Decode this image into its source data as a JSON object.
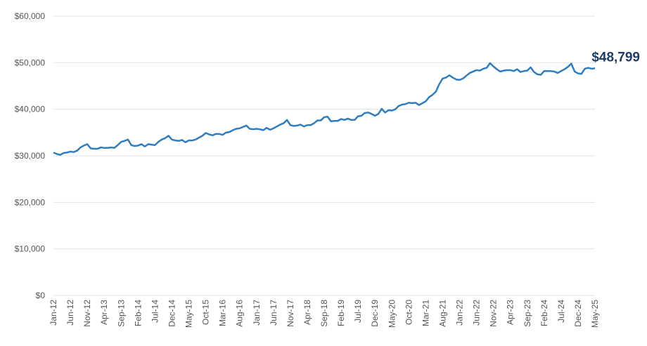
{
  "chart_data": {
    "type": "line",
    "categories": [
      "Jan-12",
      null,
      null,
      null,
      null,
      "Jun-12",
      null,
      null,
      null,
      null,
      "Nov-12",
      null,
      null,
      null,
      null,
      "Apr-13",
      null,
      null,
      null,
      null,
      "Sep-13",
      null,
      null,
      null,
      null,
      "Feb-14",
      null,
      null,
      null,
      null,
      "Jul-14",
      null,
      null,
      null,
      null,
      "Dec-14",
      null,
      null,
      null,
      null,
      "May-15",
      null,
      null,
      null,
      null,
      "Oct-15",
      null,
      null,
      null,
      null,
      "Mar-16",
      null,
      null,
      null,
      null,
      "Aug-16",
      null,
      null,
      null,
      null,
      "Jan-17",
      null,
      null,
      null,
      null,
      "Jun-17",
      null,
      null,
      null,
      null,
      "Nov-17",
      null,
      null,
      null,
      null,
      "Apr-18",
      null,
      null,
      null,
      null,
      "Sep-18",
      null,
      null,
      null,
      null,
      "Feb-19",
      null,
      null,
      null,
      null,
      "Jul-19",
      null,
      null,
      null,
      null,
      "Dec-19",
      null,
      null,
      null,
      null,
      "May-20",
      null,
      null,
      null,
      null,
      "Oct-20",
      null,
      null,
      null,
      null,
      "Mar-21",
      null,
      null,
      null,
      null,
      "Aug-21",
      null,
      null,
      null,
      null,
      "Jan-22",
      null,
      null,
      null,
      null,
      "Jun-22",
      null,
      null,
      null,
      null,
      "Nov-22",
      null,
      null,
      null,
      null,
      "Apr-23",
      null,
      null,
      null,
      null,
      "Sep-23",
      null,
      null,
      null,
      null,
      "Feb-24",
      null,
      null,
      null,
      null,
      "Jul-24",
      null,
      null,
      null,
      null,
      "Dec-24",
      null,
      null,
      null,
      null,
      "May-25"
    ],
    "values": [
      30700,
      30400,
      30200,
      30600,
      30700,
      30900,
      30800,
      31100,
      31800,
      32200,
      32500,
      31600,
      31500,
      31500,
      31800,
      31700,
      31700,
      31800,
      31700,
      32300,
      33000,
      33200,
      33500,
      32300,
      32100,
      32200,
      32500,
      32000,
      32500,
      32400,
      32300,
      33000,
      33500,
      33800,
      34300,
      33500,
      33300,
      33200,
      33400,
      32900,
      33300,
      33300,
      33500,
      33900,
      34300,
      34900,
      34600,
      34400,
      34700,
      34700,
      34500,
      35000,
      35100,
      35500,
      35800,
      35900,
      36200,
      36500,
      35800,
      35700,
      35800,
      35700,
      35500,
      36000,
      35600,
      35900,
      36300,
      36700,
      37000,
      37700,
      36600,
      36400,
      36500,
      36700,
      36300,
      36600,
      36600,
      37000,
      37600,
      37600,
      38300,
      38400,
      37400,
      37500,
      37500,
      37900,
      37700,
      38000,
      37700,
      37700,
      38500,
      38600,
      39200,
      39300,
      39000,
      38600,
      39000,
      40100,
      39300,
      39800,
      39700,
      40000,
      40700,
      41000,
      41100,
      41400,
      41300,
      41400,
      40900,
      41300,
      41700,
      42600,
      43100,
      43800,
      45400,
      46600,
      46800,
      47300,
      46800,
      46400,
      46300,
      46600,
      47200,
      47800,
      48100,
      48400,
      48300,
      48700,
      48900,
      49900,
      49200,
      48600,
      48100,
      48300,
      48400,
      48400,
      48200,
      48600,
      48000,
      48200,
      48300,
      49000,
      48000,
      47500,
      47400,
      48200,
      48200,
      48200,
      48100,
      47800,
      48200,
      48600,
      49100,
      49800,
      48100,
      47700,
      47600,
      48700,
      48900,
      48700,
      48799
    ],
    "value_labels": [
      null,
      null,
      null,
      null,
      null,
      null,
      null,
      null,
      null,
      null,
      null,
      null,
      null,
      null,
      null,
      null,
      null,
      null,
      null,
      null,
      null,
      null,
      null,
      null,
      null,
      null,
      null,
      null,
      null,
      null,
      null,
      null,
      null,
      null,
      null,
      null,
      null,
      null,
      null,
      null,
      null,
      null,
      null,
      null,
      null,
      null,
      null,
      null,
      null,
      null,
      null,
      null,
      null,
      null,
      null,
      null,
      null,
      null,
      null,
      null,
      null,
      null,
      null,
      null,
      null,
      null,
      null,
      null,
      null,
      null,
      null,
      null,
      null,
      null,
      null,
      null,
      null,
      null,
      null,
      null,
      null,
      null,
      null,
      null,
      null,
      null,
      null,
      null,
      null,
      null,
      null,
      null,
      null,
      null,
      null,
      null,
      null,
      null,
      null,
      null,
      null,
      null,
      null,
      null,
      null,
      null,
      null,
      null,
      null,
      null,
      null,
      null,
      null,
      null,
      null,
      null,
      null,
      null,
      null,
      null,
      null,
      null,
      null,
      null,
      null,
      null,
      null,
      null,
      null,
      null,
      null,
      null,
      null,
      null,
      null,
      null,
      null,
      null,
      null,
      null,
      null,
      null,
      null,
      null,
      null,
      null,
      null,
      null,
      null,
      null,
      null,
      null,
      null,
      null,
      null,
      null,
      null,
      null,
      null,
      null,
      "$48,799"
    ],
    "color": "#2f7dc1",
    "ylim": [
      0,
      60000
    ],
    "yticks": [
      {
        "value": 0,
        "label": "$0"
      },
      {
        "value": 10000,
        "label": "$10,000"
      },
      {
        "value": 20000,
        "label": "$20,000"
      },
      {
        "value": 30000,
        "label": "$30,000"
      },
      {
        "value": 40000,
        "label": "$40,000"
      },
      {
        "value": 50000,
        "label": "$50,000"
      },
      {
        "value": 60000,
        "label": "$60,000"
      }
    ],
    "grid": true
  }
}
